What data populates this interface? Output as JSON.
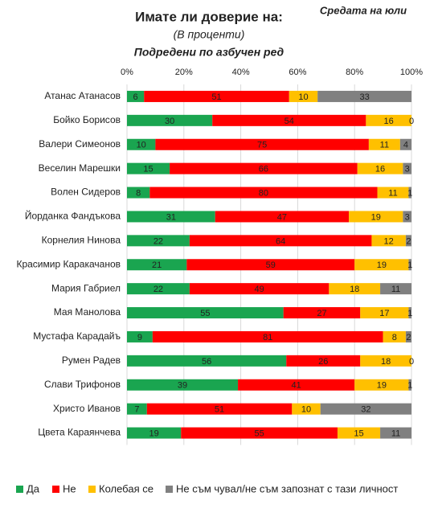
{
  "chart_data": {
    "type": "stacked-bar-horizontal",
    "title": "Имате ли доверие на:",
    "subtitle": "(В проценти)",
    "note": "Подредени по азбучен ред",
    "corner_note": "Средата на юли",
    "categories": [
      "Атанас Атанасов",
      "Бойко Борисов",
      "Валери Симеонов",
      "Веселин Марешки",
      "Волен Сидеров",
      "Йорданка Фандъкова",
      "Корнелия Нинова",
      "Красимир Каракачанов",
      "Мария Габриел",
      "Мая Манолова",
      "Мустафа Карадайъ",
      "Румен Радев",
      "Слави Трифонов",
      "Христо Иванов",
      "Цвета Караянчева"
    ],
    "series": [
      {
        "name": "Да",
        "color": "#1aa550",
        "values": [
          6,
          30,
          10,
          15,
          8,
          31,
          22,
          21,
          22,
          55,
          9,
          56,
          39,
          7,
          19
        ]
      },
      {
        "name": "Не",
        "color": "#ff0000",
        "values": [
          51,
          54,
          75,
          66,
          80,
          47,
          64,
          59,
          49,
          27,
          81,
          26,
          41,
          51,
          55
        ]
      },
      {
        "name": "Колебая се",
        "color": "#ffc000",
        "values": [
          10,
          16,
          11,
          16,
          11,
          19,
          12,
          19,
          18,
          17,
          8,
          18,
          19,
          10,
          15
        ]
      },
      {
        "name": "Не съм чувал/не съм запознат с тази личност",
        "color": "#808080",
        "values": [
          33,
          0,
          4,
          3,
          1,
          3,
          2,
          1,
          11,
          1,
          2,
          0,
          1,
          32,
          11
        ]
      }
    ],
    "xlim": [
      0,
      100
    ],
    "xticks": [
      {
        "value": 0,
        "label": "0%"
      },
      {
        "value": 20,
        "label": "20%"
      },
      {
        "value": 40,
        "label": "40%"
      },
      {
        "value": 60,
        "label": "60%"
      },
      {
        "value": 80,
        "label": "80%"
      },
      {
        "value": 100,
        "label": "100%"
      }
    ],
    "grid": true,
    "legend": "bottom"
  }
}
